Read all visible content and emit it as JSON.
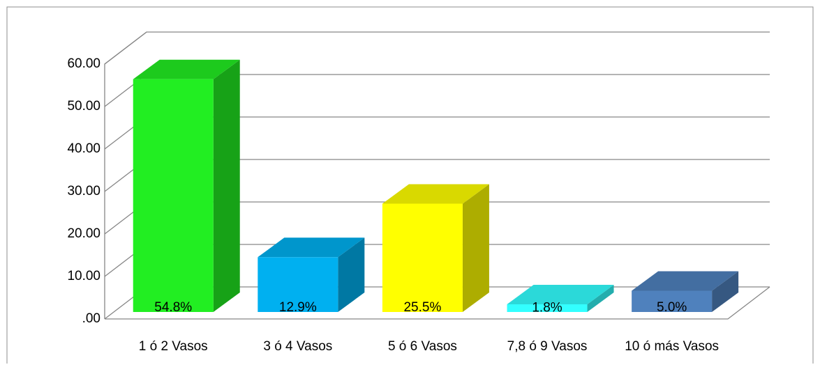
{
  "chart_data": {
    "type": "bar3d",
    "categories": [
      "1 ó 2 Vasos",
      "3 ó 4 Vasos",
      "5 ó 6 Vasos",
      "7,8 ó 9 Vasos",
      "10 ó más Vasos"
    ],
    "values": [
      54.8,
      12.9,
      25.5,
      1.8,
      5.0
    ],
    "value_labels": [
      "54.8%",
      "12.9%",
      "25.5%",
      "1.8%",
      "5.0%"
    ],
    "colors": [
      "#22ee22",
      "#00b0f0",
      "#ffff00",
      "#33ffff",
      "#4f81bd"
    ],
    "ylim": [
      0,
      60
    ],
    "yticks": [
      {
        "value": 0,
        "label": ".00"
      },
      {
        "value": 10,
        "label": "10.00"
      },
      {
        "value": 20,
        "label": "20.00"
      },
      {
        "value": 30,
        "label": "30.00"
      },
      {
        "value": 40,
        "label": "40.00"
      },
      {
        "value": 50,
        "label": "50.00"
      },
      {
        "value": 60,
        "label": "60.00"
      }
    ],
    "grid": true
  }
}
